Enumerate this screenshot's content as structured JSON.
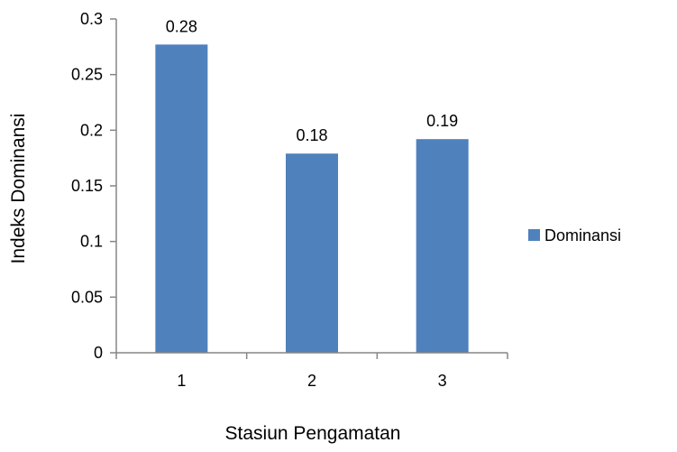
{
  "chart_data": {
    "type": "bar",
    "categories": [
      "1",
      "2",
      "3"
    ],
    "series": [
      {
        "name": "Dominansi",
        "values": [
          0.277,
          0.179,
          0.192
        ],
        "labels": [
          "0.28",
          "0.18",
          "0.19"
        ]
      }
    ],
    "y_ticks": [
      "0",
      "0.05",
      "0.1",
      "0.15",
      "0.2",
      "0.25",
      "0.3"
    ],
    "xlabel": "Stasiun Pengamatan",
    "ylabel": "Indeks Dominansi",
    "ylim": [
      0,
      0.3
    ],
    "grid": false,
    "legend_position": "right",
    "colors": {
      "bar": "#4f81bd",
      "axis": "#868686"
    }
  }
}
